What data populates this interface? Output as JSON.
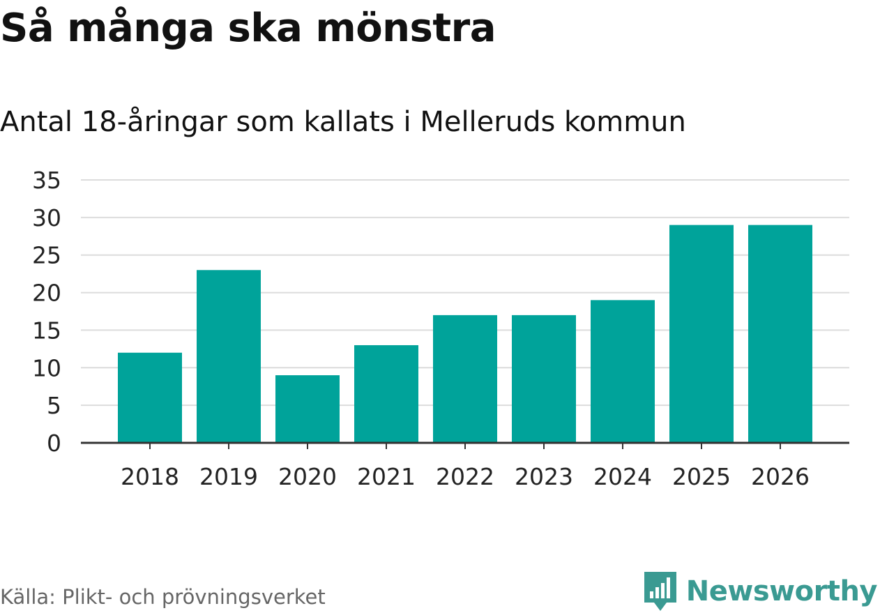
{
  "header": {
    "title": "Så många ska mönstra",
    "subtitle": "Antal 18-åringar som kallats i Melleruds kommun"
  },
  "footer": {
    "source": "Källa: Plikt- och prövningsverket",
    "brand_name": "Newsworthy",
    "brand_icon": "newsworthy-logo-icon"
  },
  "colors": {
    "bar": "#00a39a",
    "grid": "#dcdcdc",
    "axis": "#333333",
    "brand": "#3a9a92"
  },
  "chart_data": {
    "type": "bar",
    "title": "Så många ska mönstra",
    "subtitle": "Antal 18-åringar som kallats i Melleruds kommun",
    "xlabel": "",
    "ylabel": "",
    "categories": [
      "2018",
      "2019",
      "2020",
      "2021",
      "2022",
      "2023",
      "2024",
      "2025",
      "2026"
    ],
    "values": [
      12,
      23,
      9,
      13,
      17,
      17,
      19,
      29,
      29
    ],
    "ylim": [
      0,
      35
    ],
    "yticks": [
      0,
      5,
      10,
      15,
      20,
      25,
      30,
      35
    ],
    "grid": true,
    "legend": "none"
  }
}
